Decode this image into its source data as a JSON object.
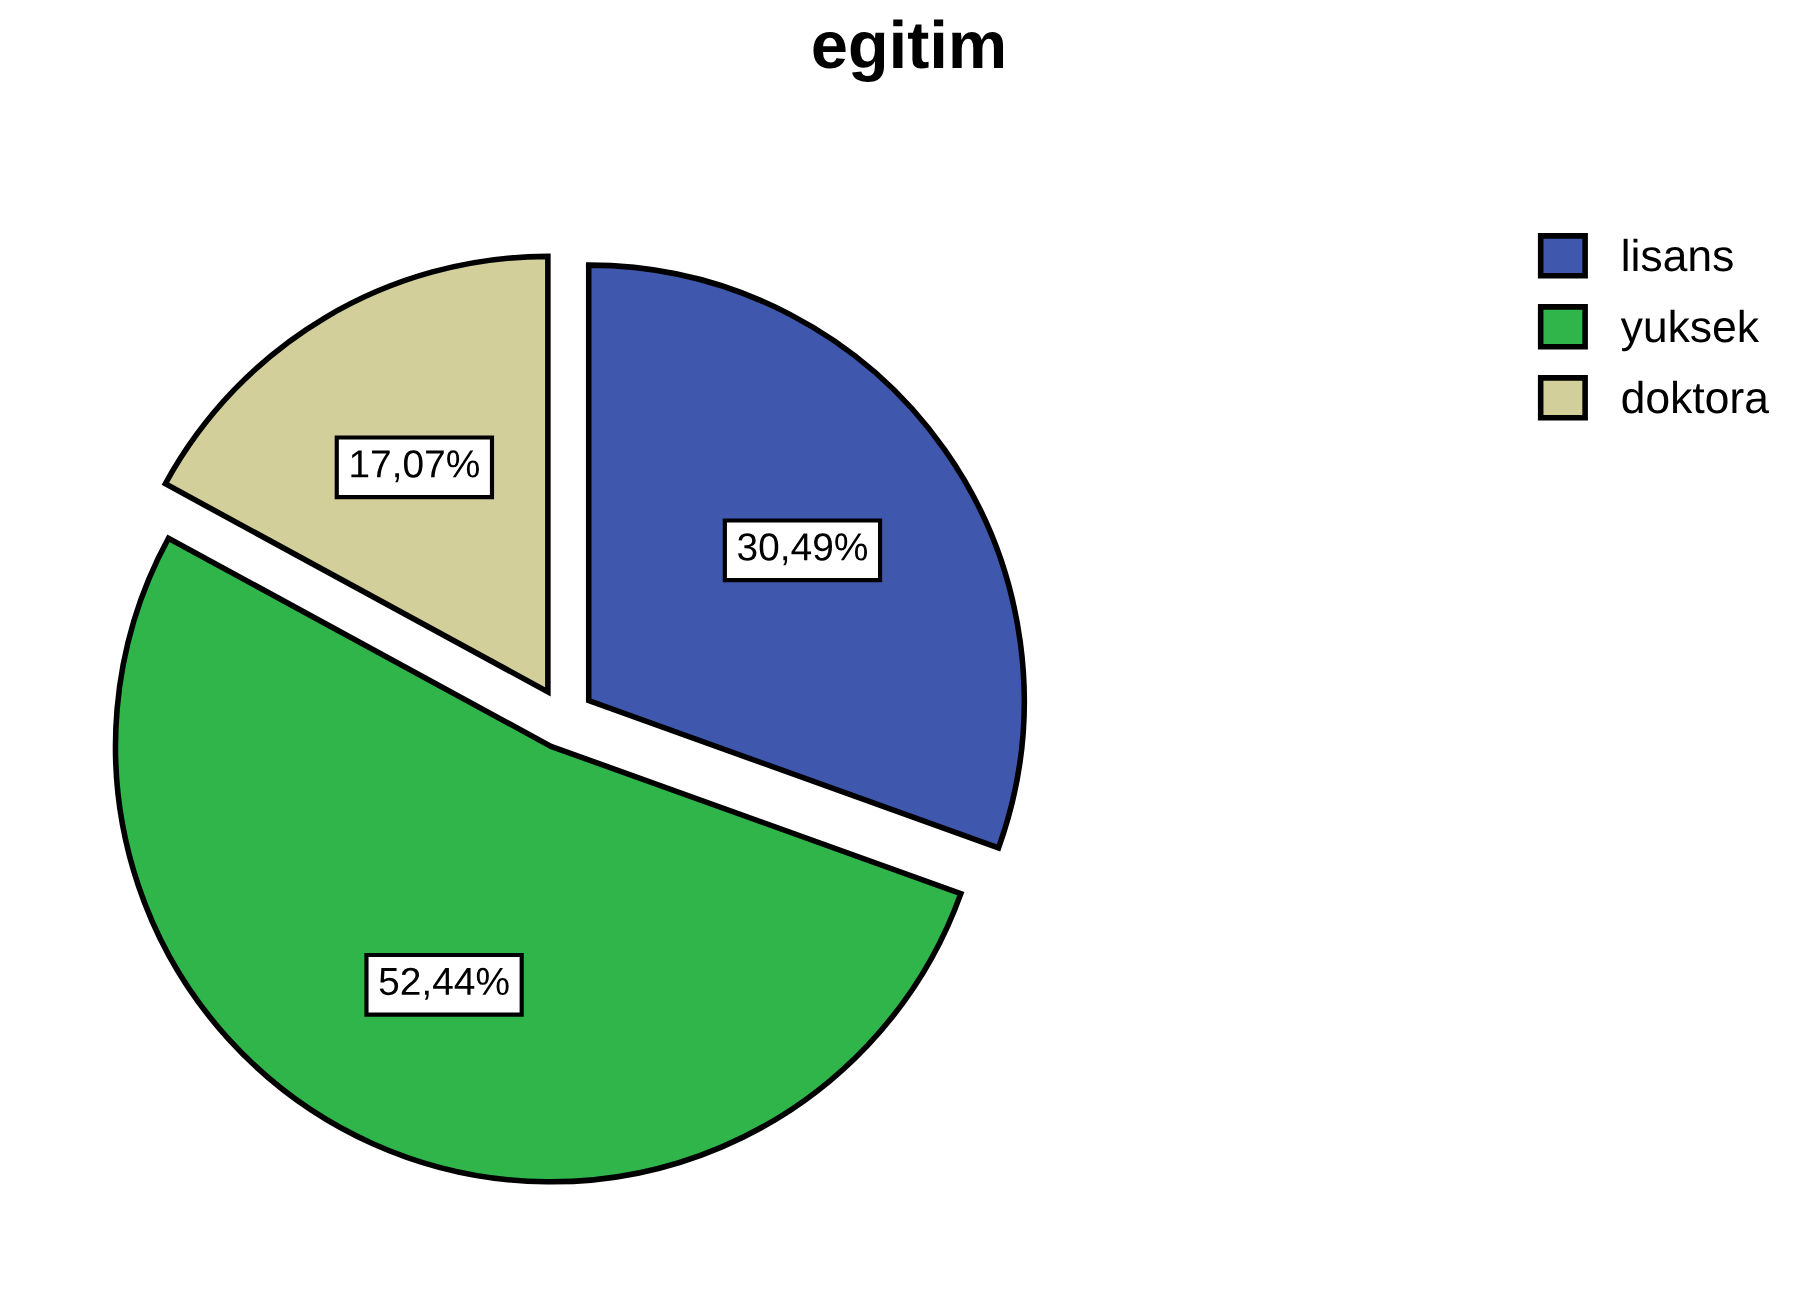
{
  "chart_data": {
    "type": "pie",
    "title": "egitim",
    "categories": [
      "lisans",
      "yuksek",
      "doktora"
    ],
    "values": [
      30.49,
      52.44,
      17.07
    ],
    "colors": [
      "#3f58ad",
      "#30b54a",
      "#d3cf9a"
    ],
    "value_labels": [
      "30,49%",
      "52,44%",
      "17,07%"
    ],
    "legend": "top right"
  }
}
